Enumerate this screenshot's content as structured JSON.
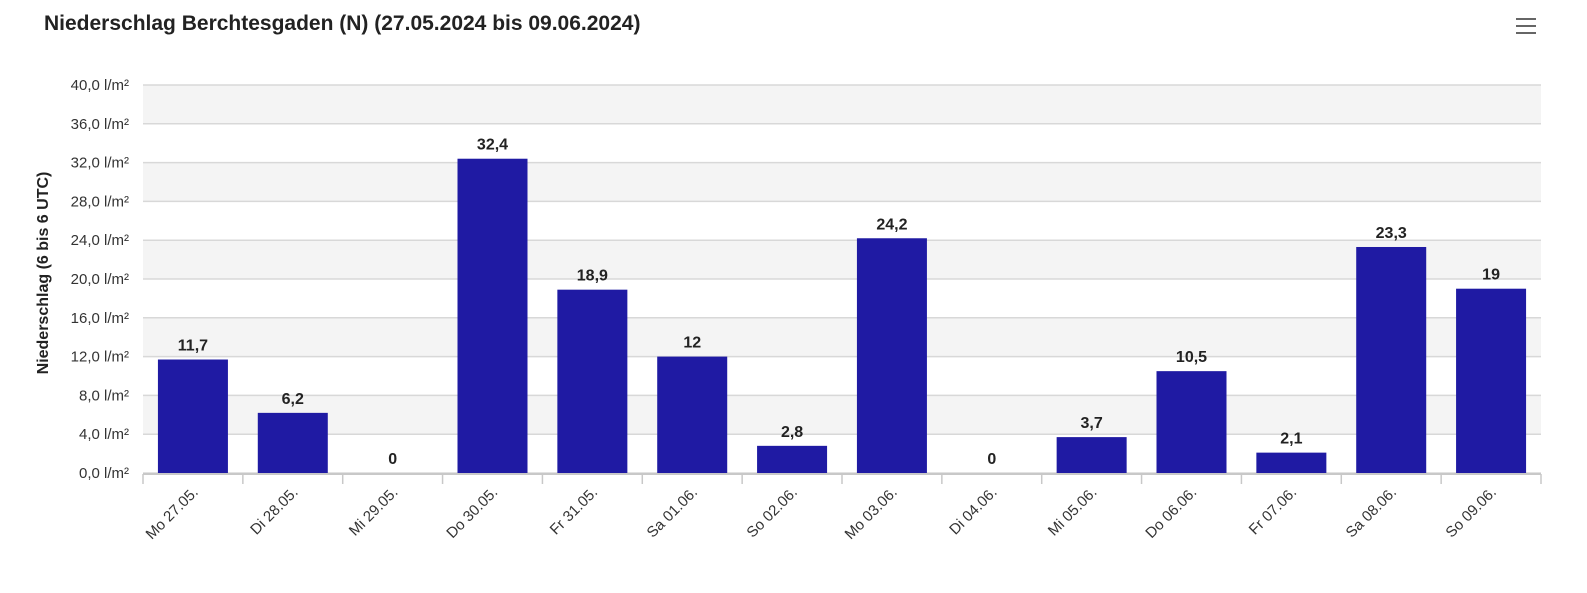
{
  "chart_data": {
    "type": "bar",
    "title": "Niederschlag Berchtesgaden (N) (27.05.2024 bis 09.06.2024)",
    "ylabel": "Niederschlag (6 bis 6 UTC)",
    "xlabel": "",
    "ylim": [
      0,
      40
    ],
    "yticks": [
      {
        "value": 0,
        "label": "0,0 l/m²"
      },
      {
        "value": 4,
        "label": "4,0 l/m²"
      },
      {
        "value": 8,
        "label": "8,0 l/m²"
      },
      {
        "value": 12,
        "label": "12,0 l/m²"
      },
      {
        "value": 16,
        "label": "16,0 l/m²"
      },
      {
        "value": 20,
        "label": "20,0 l/m²"
      },
      {
        "value": 24,
        "label": "24,0 l/m²"
      },
      {
        "value": 28,
        "label": "28,0 l/m²"
      },
      {
        "value": 32,
        "label": "32,0 l/m²"
      },
      {
        "value": 36,
        "label": "36,0 l/m²"
      },
      {
        "value": 40,
        "label": "40,0 l/m²"
      }
    ],
    "categories": [
      "Mo 27.05.",
      "Di 28.05.",
      "Mi 29.05.",
      "Do 30.05.",
      "Fr 31.05.",
      "Sa 01.06.",
      "So 02.06.",
      "Mo 03.06.",
      "Di 04.06.",
      "Mi 05.06.",
      "Do 06.06.",
      "Fr 07.06.",
      "Sa 08.06.",
      "So 09.06."
    ],
    "values": [
      11.7,
      6.2,
      0,
      32.4,
      18.9,
      12,
      2.8,
      24.2,
      0,
      3.7,
      10.5,
      2.1,
      23.3,
      19
    ],
    "data_labels": [
      "11,7",
      "6,2",
      "0",
      "32,4",
      "18,9",
      "12",
      "2,8",
      "24,2",
      "0",
      "3,7",
      "10,5",
      "2,1",
      "23,3",
      "19"
    ],
    "bar_color": "#1f1aa3",
    "grid": true,
    "legend": "none"
  },
  "menu": {
    "icon": "hamburger-menu-icon"
  }
}
